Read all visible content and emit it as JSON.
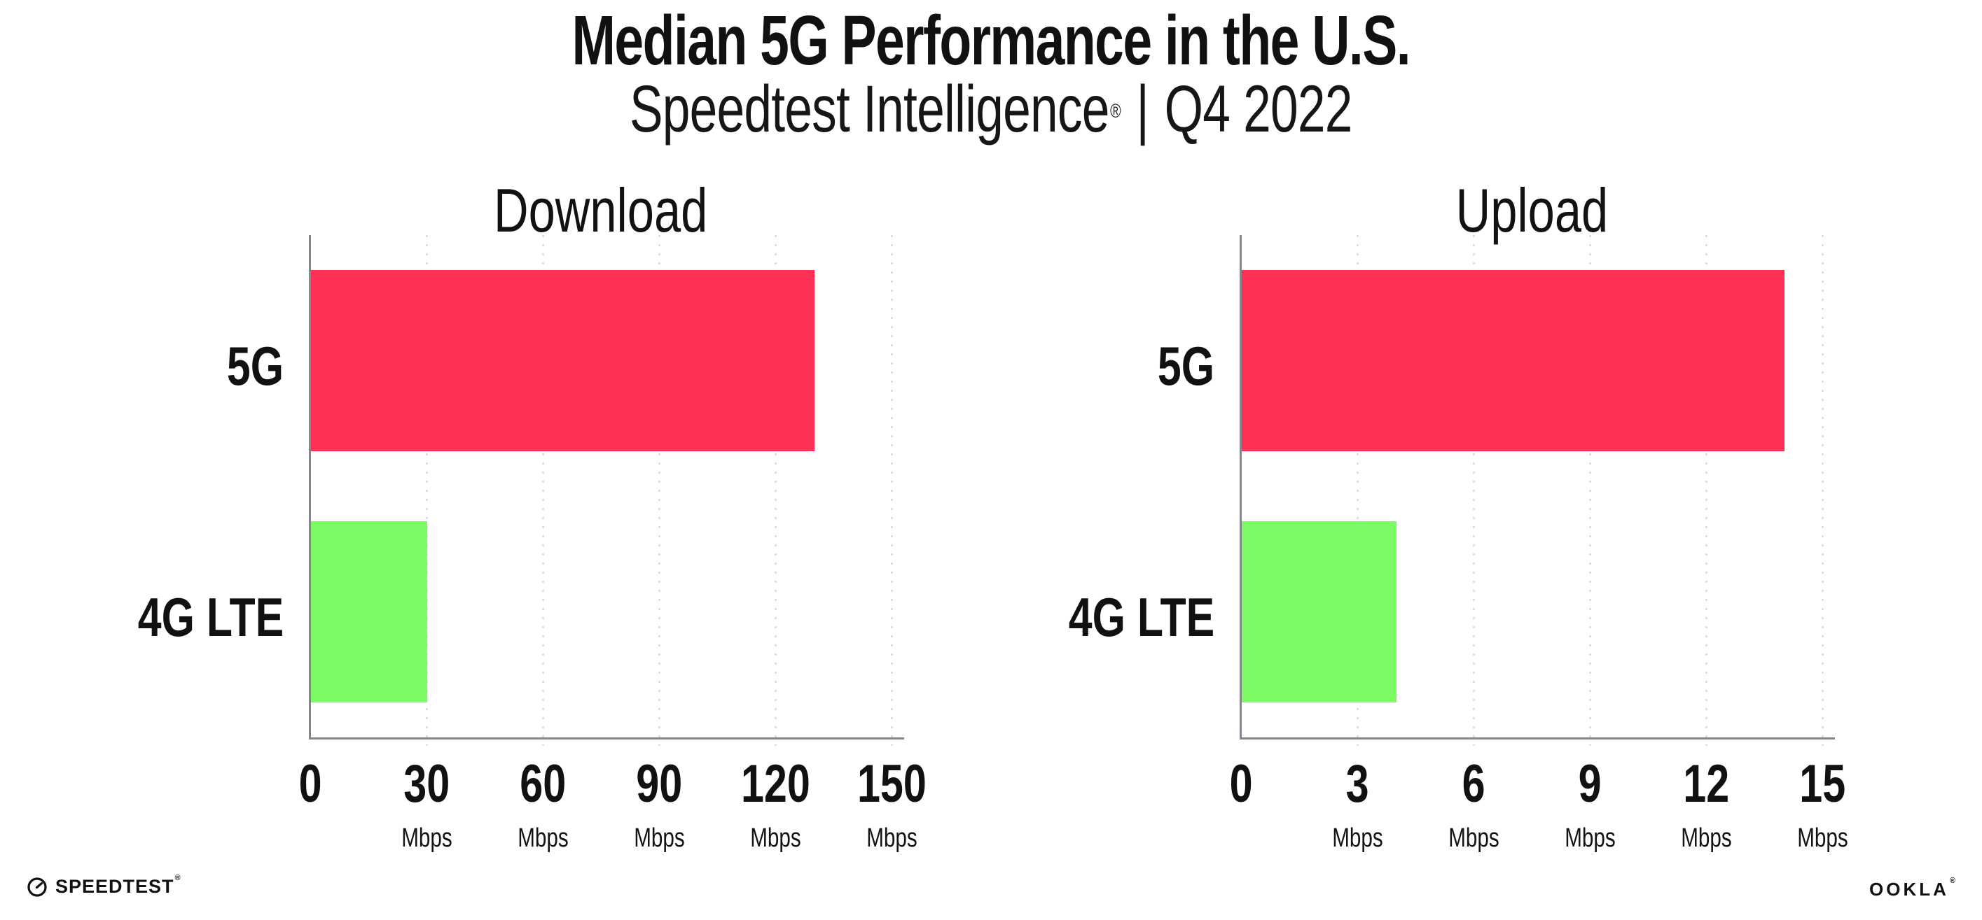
{
  "header": {
    "title": "Median 5G Performance in the U.S.",
    "subtitle_brand": "Speedtest Intelligence",
    "subtitle_reg": "®",
    "subtitle_divider": "|",
    "subtitle_period": "Q4 2022"
  },
  "colors": {
    "bar_5g": "#FF3056",
    "bar_4g_lte": "#7DFB64",
    "gridline": "#DEDEE8",
    "axis": "#85858D",
    "text": "#111111"
  },
  "chart_data": [
    {
      "type": "bar",
      "orientation": "horizontal",
      "title": "Download",
      "categories": [
        "5G",
        "4G LTE"
      ],
      "values": [
        130,
        30
      ],
      "unit": "Mbps",
      "xlim": [
        0,
        150
      ],
      "xticks": [
        0,
        30,
        60,
        90,
        120,
        150
      ],
      "bar_colors": [
        "#FF3056",
        "#7DFB64"
      ],
      "grid": "dotted-vertical",
      "legend": "none"
    },
    {
      "type": "bar",
      "orientation": "horizontal",
      "title": "Upload",
      "categories": [
        "5G",
        "4G LTE"
      ],
      "values": [
        14,
        4
      ],
      "unit": "Mbps",
      "xlim": [
        0,
        15
      ],
      "xticks": [
        0,
        3,
        6,
        9,
        12,
        15
      ],
      "bar_colors": [
        "#FF3056",
        "#7DFB64"
      ],
      "grid": "dotted-vertical",
      "legend": "none"
    }
  ],
  "footer": {
    "speedtest_label": "SPEEDTEST",
    "speedtest_mark": "®",
    "ookla_label": "OOKLA",
    "ookla_mark": "®"
  }
}
